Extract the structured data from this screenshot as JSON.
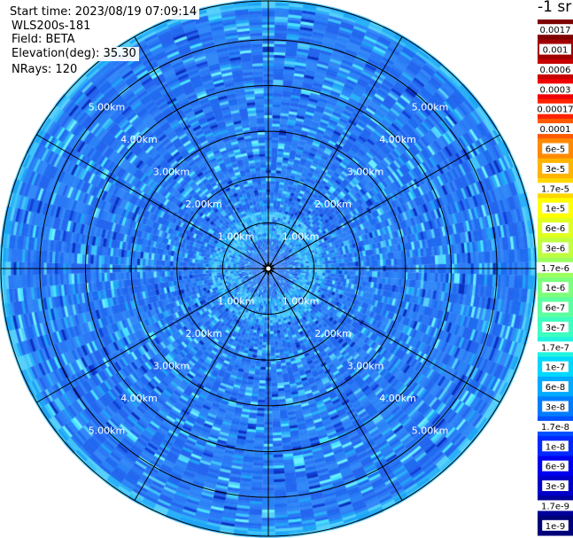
{
  "header": {
    "start_time": "Start time: 2023/08/19 07:09:14",
    "instrument": "WLS200s-181",
    "field": "Field: BETA",
    "elevation": "Elevation(deg): 35.30",
    "nrays": "NRays: 120"
  },
  "chart_data": {
    "type": "heatmap",
    "projection": "polar-ppi",
    "range_rings_km": [
      1,
      2,
      3,
      4,
      5
    ],
    "ring_labels": [
      "1.00km",
      "2.00km",
      "3.00km",
      "4.00km",
      "5.00km"
    ],
    "max_range_km": 5.85,
    "radial_lines_deg": [
      0,
      30,
      60,
      90,
      120,
      150,
      180,
      210,
      240,
      270,
      300,
      330
    ],
    "nrays": 120,
    "colorbar": {
      "unit_label": "-1 sr",
      "ticks": [
        "0.0017",
        "0.001",
        "0.0006",
        "0.0003",
        "0.00017",
        "0.0001",
        "6e-5",
        "3e-5",
        "1.7e-5",
        "1e-5",
        "6e-6",
        "3e-6",
        "1.7e-6",
        "1e-6",
        "6e-7",
        "3e-7",
        "1.7e-7",
        "1e-7",
        "6e-8",
        "3e-8",
        "1.7e-8",
        "1e-8",
        "6e-9",
        "3e-9",
        "1.7e-9",
        "1e-9"
      ],
      "colors": [
        "#7e0000",
        "#a00000",
        "#c80000",
        "#f00000",
        "#ff2200",
        "#ff5a00",
        "#ff8a00",
        "#ffb400",
        "#ffd800",
        "#ffff00",
        "#e0ff20",
        "#c0ff40",
        "#9cff60",
        "#7cff7c",
        "#5cffa0",
        "#3cffc0",
        "#20f4e0",
        "#00d8ff",
        "#00aaff",
        "#007cff",
        "#0050ff",
        "#0028ff",
        "#0000f0",
        "#0000c8",
        "#00009c",
        "#000078"
      ]
    },
    "field_levels": {
      "outer_typical": "1e-8",
      "inner_ring_typical": "1.7e-8",
      "inner_ring_range_km": [
        0.6,
        1.2
      ],
      "sparse_values": [
        "6e-9",
        "3e-8"
      ]
    }
  }
}
